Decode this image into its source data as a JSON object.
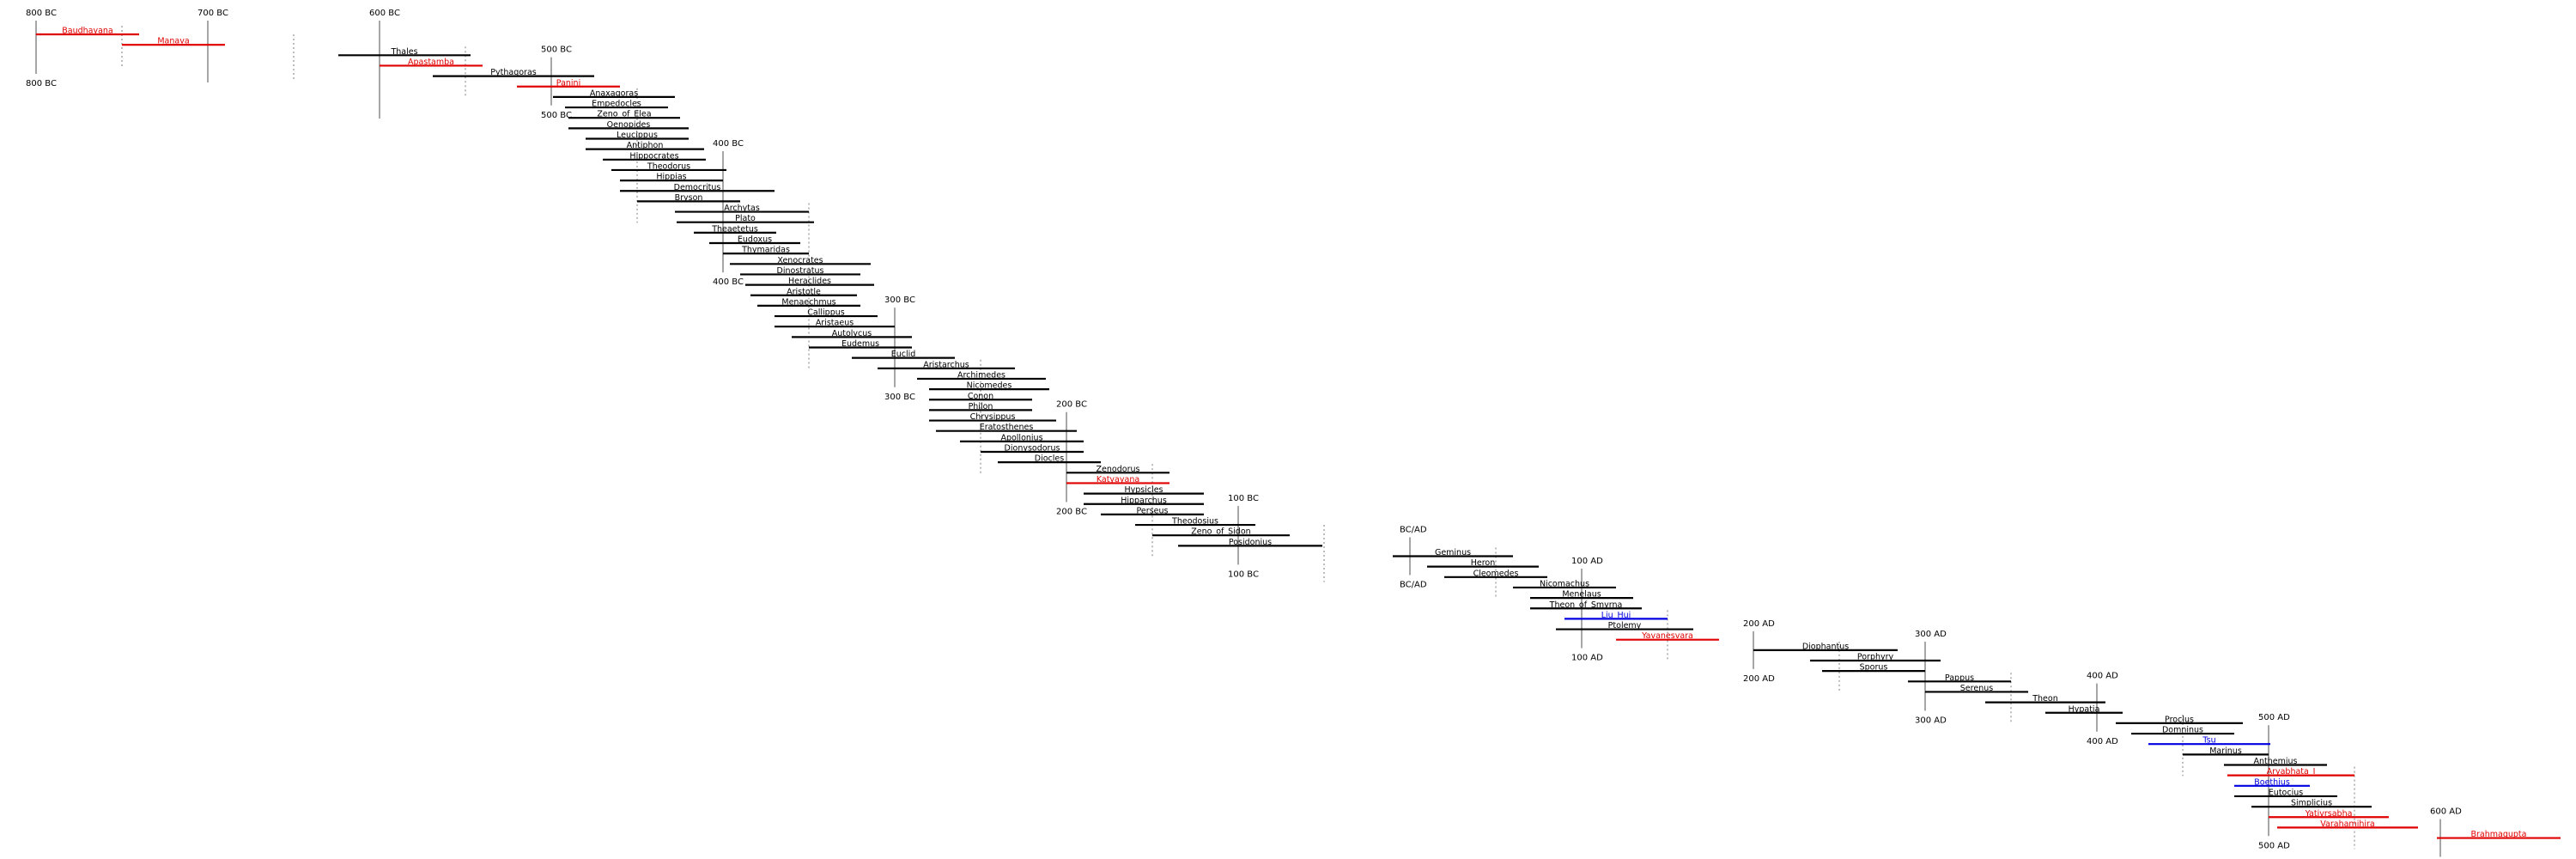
{
  "colors": {
    "black": "#000000",
    "red": "#e00000",
    "blue": "#0000e0",
    "century_line": "#777777",
    "half_line": "#888888"
  },
  "centuries": [
    {
      "label": "800 BC",
      "top": true,
      "bottom": true
    },
    {
      "label": "700 BC",
      "top": true,
      "bottom": false
    },
    {
      "label": "600 BC",
      "top": true,
      "bottom": false
    },
    {
      "label": "500 BC",
      "top": true,
      "bottom": true
    },
    {
      "label": "400 BC",
      "top": true,
      "bottom": true
    },
    {
      "label": "300 BC",
      "top": true,
      "bottom": true
    },
    {
      "label": "200 BC",
      "top": true,
      "bottom": true
    },
    {
      "label": "100 BC",
      "top": true,
      "bottom": true
    },
    {
      "label": "BC/AD",
      "top": true,
      "bottom": true
    },
    {
      "label": "100 AD",
      "top": true,
      "bottom": true
    },
    {
      "label": "200 AD",
      "top": true,
      "bottom": true
    },
    {
      "label": "300 AD",
      "top": true,
      "bottom": true
    },
    {
      "label": "400 AD",
      "top": true,
      "bottom": true
    },
    {
      "label": "500 AD",
      "top": true,
      "bottom": true
    },
    {
      "label": "600 AD",
      "top": true,
      "bottom": true
    }
  ],
  "people": [
    {
      "name": "Baudhayana",
      "start": -800,
      "end": -740,
      "color": "red"
    },
    {
      "name": "Manava",
      "start": -750,
      "end": -690,
      "color": "red"
    },
    {
      "name": "Thales",
      "start": -624,
      "end": -547,
      "color": "black"
    },
    {
      "name": "Apastamba",
      "start": -600,
      "end": -540,
      "color": "red"
    },
    {
      "name": "Pythagoras",
      "start": -569,
      "end": -475,
      "color": "black"
    },
    {
      "name": "Panini",
      "start": -520,
      "end": -460,
      "color": "red"
    },
    {
      "name": "Anaxagoras",
      "start": -499,
      "end": -428,
      "color": "black"
    },
    {
      "name": "Empedocles",
      "start": -492,
      "end": -432,
      "color": "black"
    },
    {
      "name": "Zeno_of_Elea",
      "start": -490,
      "end": -425,
      "color": "black"
    },
    {
      "name": "Oenopides",
      "start": -490,
      "end": -420,
      "color": "black"
    },
    {
      "name": "Leucippus",
      "start": -480,
      "end": -420,
      "color": "black"
    },
    {
      "name": "Antiphon",
      "start": -480,
      "end": -411,
      "color": "black"
    },
    {
      "name": "Hippocrates",
      "start": -470,
      "end": -410,
      "color": "black"
    },
    {
      "name": "Theodorus",
      "start": -465,
      "end": -398,
      "color": "black"
    },
    {
      "name": "Hippias",
      "start": -460,
      "end": -400,
      "color": "black"
    },
    {
      "name": "Democritus",
      "start": -460,
      "end": -370,
      "color": "black"
    },
    {
      "name": "Bryson",
      "start": -450,
      "end": -390,
      "color": "black"
    },
    {
      "name": "Archytas",
      "start": -428,
      "end": -350,
      "color": "black"
    },
    {
      "name": "Plato",
      "start": -427,
      "end": -347,
      "color": "black"
    },
    {
      "name": "Theaetetus",
      "start": -417,
      "end": -369,
      "color": "black"
    },
    {
      "name": "Eudoxus",
      "start": -408,
      "end": -355,
      "color": "black"
    },
    {
      "name": "Thymaridas",
      "start": -400,
      "end": -350,
      "color": "black"
    },
    {
      "name": "Xenocrates",
      "start": -396,
      "end": -314,
      "color": "black"
    },
    {
      "name": "Dinostratus",
      "start": -390,
      "end": -320,
      "color": "black"
    },
    {
      "name": "Heraclides",
      "start": -387,
      "end": -312,
      "color": "black"
    },
    {
      "name": "Aristotle",
      "start": -384,
      "end": -322,
      "color": "black"
    },
    {
      "name": "Menaechmus",
      "start": -380,
      "end": -320,
      "color": "black"
    },
    {
      "name": "Callippus",
      "start": -370,
      "end": -310,
      "color": "black"
    },
    {
      "name": "Aristaeus",
      "start": -370,
      "end": -300,
      "color": "black"
    },
    {
      "name": "Autolycus",
      "start": -360,
      "end": -290,
      "color": "black"
    },
    {
      "name": "Eudemus",
      "start": -350,
      "end": -290,
      "color": "black"
    },
    {
      "name": "Euclid",
      "start": -325,
      "end": -265,
      "color": "black"
    },
    {
      "name": "Aristarchus",
      "start": -310,
      "end": -230,
      "color": "black"
    },
    {
      "name": "Archimedes",
      "start": -287,
      "end": -212,
      "color": "black"
    },
    {
      "name": "Nicomedes",
      "start": -280,
      "end": -210,
      "color": "black"
    },
    {
      "name": "Conon",
      "start": -280,
      "end": -220,
      "color": "black"
    },
    {
      "name": "Philon",
      "start": -280,
      "end": -220,
      "color": "black"
    },
    {
      "name": "Chrysippus",
      "start": -280,
      "end": -206,
      "color": "black"
    },
    {
      "name": "Eratosthenes",
      "start": -276,
      "end": -194,
      "color": "black"
    },
    {
      "name": "Apollonius",
      "start": -262,
      "end": -190,
      "color": "black"
    },
    {
      "name": "Dionysodorus",
      "start": -250,
      "end": -190,
      "color": "black"
    },
    {
      "name": "Diocles",
      "start": -240,
      "end": -180,
      "color": "black"
    },
    {
      "name": "Zenodorus",
      "start": -200,
      "end": -140,
      "color": "black"
    },
    {
      "name": "Katyayana",
      "start": -200,
      "end": -140,
      "color": "red"
    },
    {
      "name": "Hypsicles",
      "start": -190,
      "end": -120,
      "color": "black"
    },
    {
      "name": "Hipparchus",
      "start": -190,
      "end": -120,
      "color": "black"
    },
    {
      "name": "Perseus",
      "start": -180,
      "end": -120,
      "color": "black"
    },
    {
      "name": "Theodosius",
      "start": -160,
      "end": -90,
      "color": "black"
    },
    {
      "name": "Zeno_of_Sidon",
      "start": -150,
      "end": -70,
      "color": "black"
    },
    {
      "name": "Posidonius",
      "start": -135,
      "end": -51,
      "color": "black"
    },
    {
      "name": "Geminus",
      "start": -10,
      "end": 60,
      "color": "black"
    },
    {
      "name": "Heron",
      "start": 10,
      "end": 75,
      "color": "black"
    },
    {
      "name": "Cleomedes",
      "start": 20,
      "end": 80,
      "color": "black"
    },
    {
      "name": "Nicomachus",
      "start": 60,
      "end": 120,
      "color": "black"
    },
    {
      "name": "Menelaus",
      "start": 70,
      "end": 130,
      "color": "black"
    },
    {
      "name": "Theon_of_Smyrna",
      "start": 70,
      "end": 135,
      "color": "black"
    },
    {
      "name": "Liu_Hui",
      "start": 90,
      "end": 150,
      "color": "blue"
    },
    {
      "name": "Ptolemy",
      "start": 85,
      "end": 165,
      "color": "black"
    },
    {
      "name": "Yavanesvara",
      "start": 120,
      "end": 180,
      "color": "red"
    },
    {
      "name": "Diophantus",
      "start": 200,
      "end": 284,
      "color": "black"
    },
    {
      "name": "Porphyry",
      "start": 233,
      "end": 309,
      "color": "black"
    },
    {
      "name": "Sporus",
      "start": 240,
      "end": 300,
      "color": "black"
    },
    {
      "name": "Pappus",
      "start": 290,
      "end": 350,
      "color": "black"
    },
    {
      "name": "Serenus",
      "start": 300,
      "end": 360,
      "color": "black"
    },
    {
      "name": "Theon",
      "start": 335,
      "end": 405,
      "color": "black"
    },
    {
      "name": "Hypatia",
      "start": 370,
      "end": 415,
      "color": "black"
    },
    {
      "name": "Proclus",
      "start": 411,
      "end": 485,
      "color": "black"
    },
    {
      "name": "Domninus",
      "start": 420,
      "end": 480,
      "color": "black"
    },
    {
      "name": "Tsu",
      "start": 430,
      "end": 501,
      "color": "blue"
    },
    {
      "name": "Marinus",
      "start": 450,
      "end": 500,
      "color": "black"
    },
    {
      "name": "Anthemius",
      "start": 474,
      "end": 534,
      "color": "black"
    },
    {
      "name": "Aryabhata_I",
      "start": 476,
      "end": 550,
      "color": "red"
    },
    {
      "name": "Boethius",
      "start": 480,
      "end": 524,
      "color": "blue"
    },
    {
      "name": "Eutocius",
      "start": 480,
      "end": 540,
      "color": "black"
    },
    {
      "name": "Simplicius",
      "start": 490,
      "end": 560,
      "color": "black"
    },
    {
      "name": "Yativrsabha",
      "start": 500,
      "end": 570,
      "color": "red"
    },
    {
      "name": "Varahamihira",
      "start": 505,
      "end": 587,
      "color": "red"
    },
    {
      "name": "Brahmagupta",
      "start": 598,
      "end": 670,
      "color": "red"
    }
  ]
}
